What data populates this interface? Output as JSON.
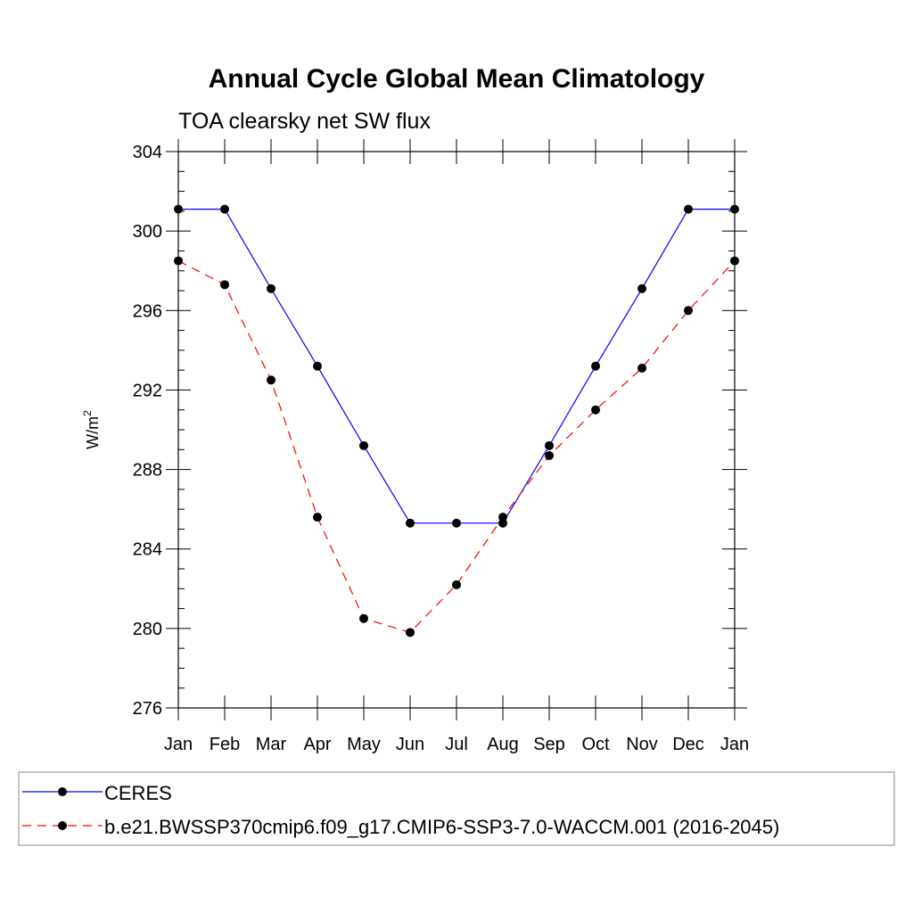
{
  "chart_data": {
    "type": "line",
    "title": "Annual Cycle Global Mean Climatology",
    "subtitle": "TOA clearsky net SW flux",
    "ylabel_base": "W/m",
    "ylabel_sup": "2",
    "ylim": [
      276,
      304
    ],
    "yticks": [
      "304",
      "300",
      "296",
      "292",
      "288",
      "284",
      "280",
      "276"
    ],
    "categories": [
      "Jan",
      "Feb",
      "Mar",
      "Apr",
      "May",
      "Jun",
      "Jul",
      "Aug",
      "Sep",
      "Oct",
      "Nov",
      "Dec",
      "Jan"
    ],
    "series": [
      {
        "name": "CERES",
        "color": "#0000ff",
        "dash": "solid",
        "values": [
          301.1,
          301.1,
          297.1,
          293.2,
          289.2,
          285.3,
          285.3,
          285.3,
          289.2,
          293.2,
          297.1,
          301.1,
          301.1
        ]
      },
      {
        "name": "b.e21.BWSSP370cmip6.f09_g17.CMIP6-SSP3-7.0-WACCM.001 (2016-2045)",
        "color": "#ff0000",
        "dash": "dashed",
        "values": [
          298.5,
          297.3,
          292.5,
          285.6,
          280.5,
          279.8,
          282.2,
          285.6,
          288.7,
          291.0,
          293.1,
          296.0,
          298.5
        ]
      }
    ],
    "grid": false,
    "legend_position": "bottom"
  }
}
